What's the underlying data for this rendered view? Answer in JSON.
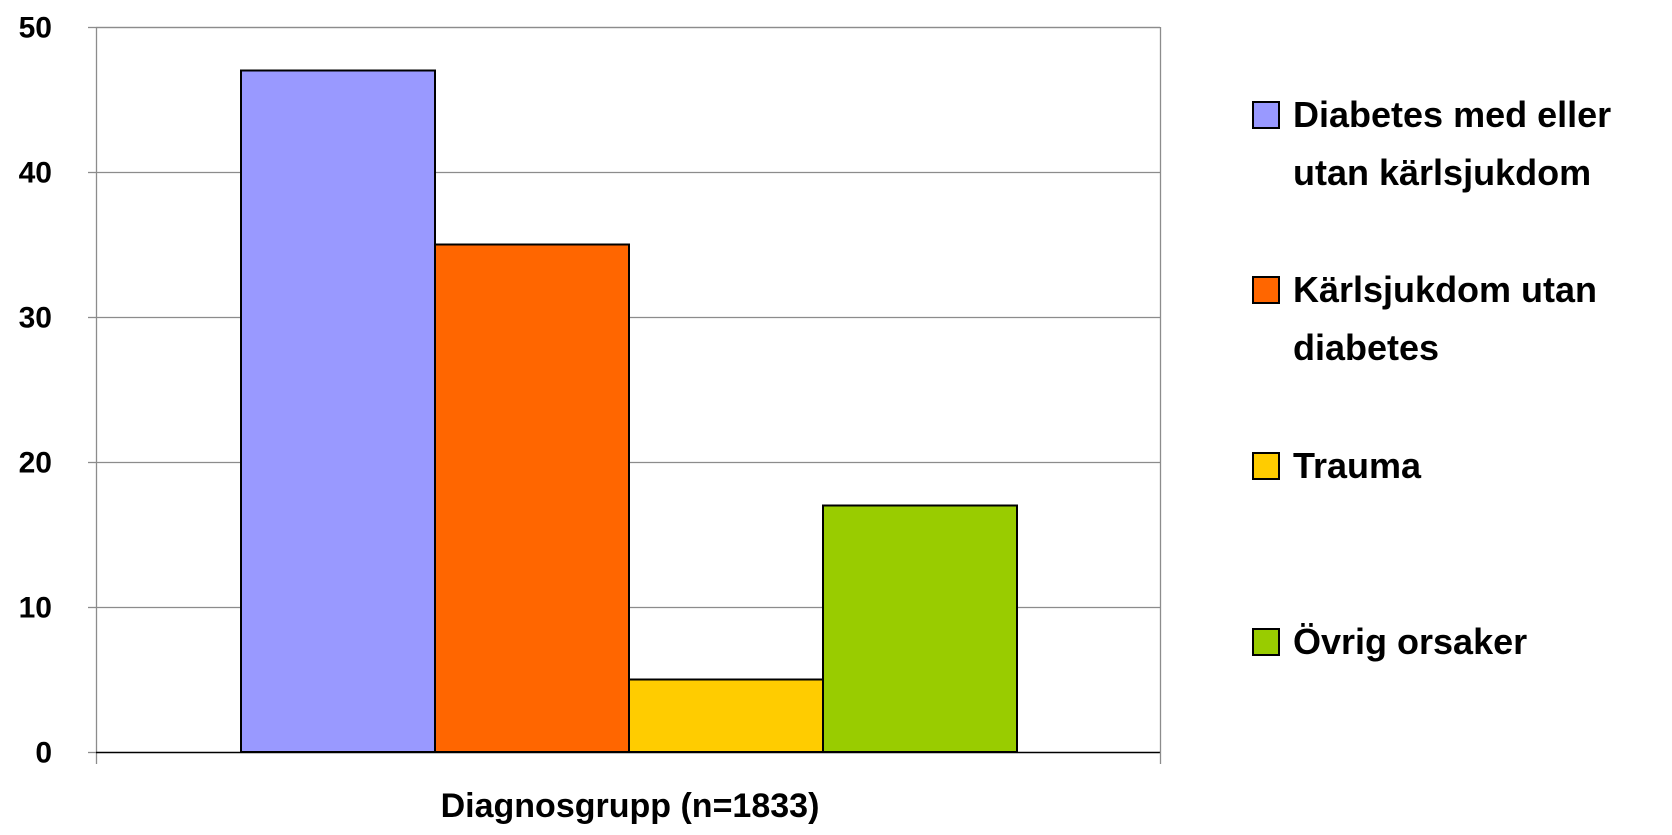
{
  "chart_data": {
    "type": "bar",
    "xlabel": "Diagnosgrupp (n=1833)",
    "ylabel": "",
    "ylim": [
      0,
      50
    ],
    "yticks": [
      0,
      10,
      20,
      30,
      40,
      50
    ],
    "grid": true,
    "legend_position": "right",
    "series": [
      {
        "name": "Diabetes med eller utan kärlsjukdom",
        "legend_lines": [
          "Diabetes med eller",
          "utan kärlsjukdom"
        ],
        "value": 47,
        "color": "#9999FF"
      },
      {
        "name": "Kärlsjukdom utan diabetes",
        "legend_lines": [
          "Kärlsjukdom utan",
          "diabetes"
        ],
        "value": 35,
        "color": "#FF6600"
      },
      {
        "name": "Trauma",
        "legend_lines": [
          "Trauma"
        ],
        "value": 5,
        "color": "#FFCC00"
      },
      {
        "name": "Övrig orsaker",
        "legend_lines": [
          "Övrig orsaker"
        ],
        "value": 17,
        "color": "#99CC00"
      }
    ]
  }
}
